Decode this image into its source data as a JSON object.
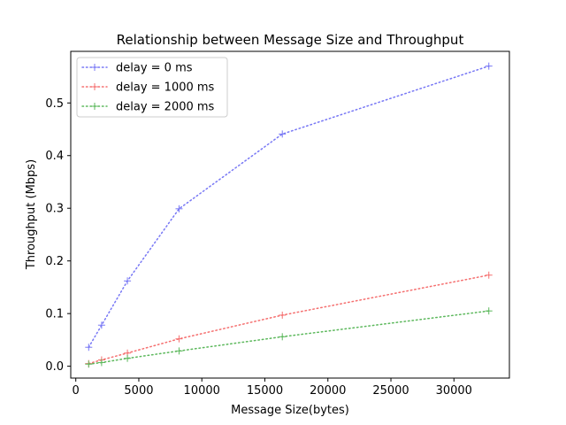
{
  "chart_data": {
    "type": "line",
    "title": "Relationship between Message Size and Throughput",
    "xlabel": "Message Size(bytes)",
    "ylabel": "Throughput (Mbps)",
    "xlim": [
      -400,
      34400
    ],
    "ylim": [
      -0.0225,
      0.598
    ],
    "xticks": [
      0,
      5000,
      10000,
      15000,
      20000,
      25000,
      30000
    ],
    "xtick_labels": [
      "0",
      "5000",
      "10000",
      "15000",
      "20000",
      "25000",
      "30000"
    ],
    "yticks": [
      0.0,
      0.1,
      0.2,
      0.3,
      0.4,
      0.5
    ],
    "ytick_labels": [
      "0.0",
      "0.1",
      "0.2",
      "0.3",
      "0.4",
      "0.5"
    ],
    "grid": false,
    "legend_position": "upper-left",
    "x": [
      1024,
      2048,
      4096,
      8192,
      16384,
      32768
    ],
    "series": [
      {
        "name": "delay = 0 ms",
        "color": "#7777f5",
        "marker": "plus",
        "linestyle": "dotted",
        "values": [
          0.036,
          0.078,
          0.162,
          0.299,
          0.441,
          0.57
        ]
      },
      {
        "name": "delay = 1000 ms",
        "color": "#f56f6f",
        "marker": "plus",
        "linestyle": "dotted",
        "values": [
          0.005,
          0.012,
          0.025,
          0.052,
          0.097,
          0.173
        ]
      },
      {
        "name": "delay = 2000 ms",
        "color": "#5cb85c",
        "marker": "plus",
        "linestyle": "dotted",
        "values": [
          0.004,
          0.007,
          0.015,
          0.029,
          0.056,
          0.105
        ]
      }
    ]
  }
}
